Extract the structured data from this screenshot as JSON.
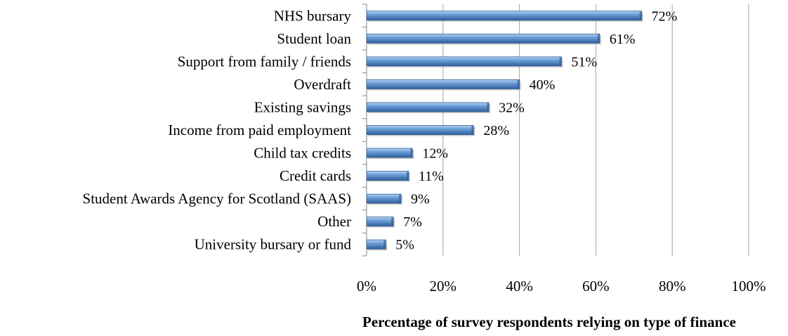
{
  "chart_data": {
    "type": "bar",
    "orientation": "horizontal",
    "categories": [
      "NHS bursary",
      "Student loan",
      "Support from family / friends",
      "Overdraft",
      "Existing savings",
      "Income from paid employment",
      "Child tax credits",
      "Credit cards",
      "Student Awards Agency for Scotland (SAAS)",
      "Other",
      "University bursary or fund"
    ],
    "values": [
      72,
      61,
      51,
      40,
      32,
      28,
      12,
      11,
      9,
      7,
      5
    ],
    "value_labels": [
      "72%",
      "61%",
      "51%",
      "40%",
      "32%",
      "28%",
      "12%",
      "11%",
      "9%",
      "7%",
      "5%"
    ],
    "xlabel": "Percentage of survey respondents relying on type of finance",
    "xlim": [
      0,
      100
    ],
    "xticks": [
      0,
      20,
      40,
      60,
      80,
      100
    ],
    "xtick_labels": [
      "0%",
      "20%",
      "40%",
      "60%",
      "80%",
      "100%"
    ],
    "grid": "vertical",
    "legend": "none",
    "colors": {
      "bar": "#4F81BD",
      "bar_light": "#9DC3E6",
      "bar_dark": "#2E5C94",
      "grid": "#A6A6A6"
    }
  }
}
